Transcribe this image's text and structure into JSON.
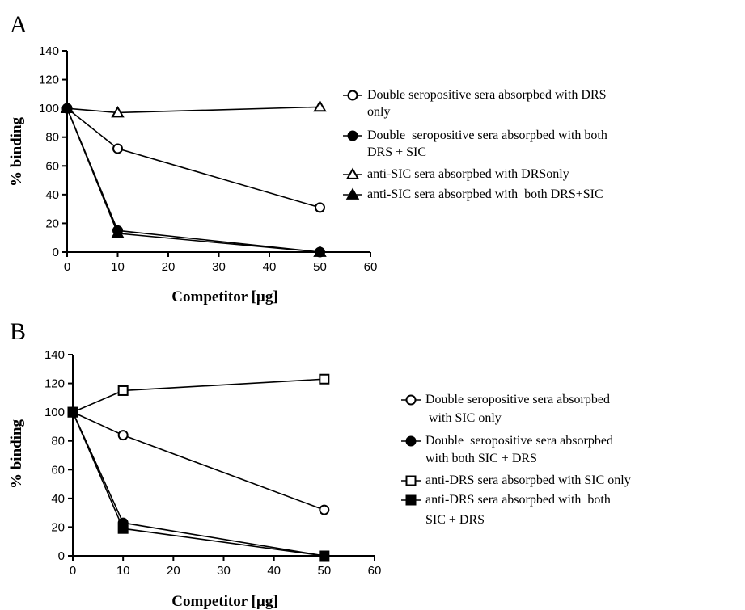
{
  "chart_data": [
    {
      "panel": "A",
      "type": "line",
      "xlabel": "Competitor [µg]",
      "ylabel": "% binding",
      "xlim": [
        0,
        60
      ],
      "ylim": [
        0,
        140
      ],
      "xticks": [
        0,
        10,
        20,
        30,
        40,
        50,
        60
      ],
      "yticks": [
        0,
        20,
        40,
        60,
        80,
        100,
        120,
        140
      ],
      "grid": false,
      "legend_position": "right",
      "x": [
        0,
        10,
        50
      ],
      "series": [
        {
          "name_lines": [
            "Double seropositive sera absorpbed with DRS",
            "only"
          ],
          "marker": "circle-open",
          "values": [
            100,
            72,
            31
          ]
        },
        {
          "name_lines": [
            "Double  seropositive sera absorpbed with both",
            "DRS + SIC"
          ],
          "marker": "circle-filled",
          "values": [
            100,
            15,
            0
          ]
        },
        {
          "name_lines": [
            "anti-SIC sera absorpbed with DRSonly"
          ],
          "marker": "triangle-open",
          "values": [
            100,
            97,
            101
          ]
        },
        {
          "name_lines": [
            "anti-SIC sera absorpbed with  both DRS+SIC"
          ],
          "marker": "triangle-filled",
          "values": [
            100,
            13,
            0
          ]
        }
      ]
    },
    {
      "panel": "B",
      "type": "line",
      "xlabel": "Competitor [µg]",
      "ylabel": "% binding",
      "xlim": [
        0,
        60
      ],
      "ylim": [
        0,
        140
      ],
      "xticks": [
        0,
        10,
        20,
        30,
        40,
        50,
        60
      ],
      "yticks": [
        0,
        20,
        40,
        60,
        80,
        100,
        120,
        140
      ],
      "grid": false,
      "legend_position": "right",
      "x": [
        0,
        10,
        50
      ],
      "series": [
        {
          "name_lines": [
            "Double seropositive sera absorpbed",
            " with SIC only"
          ],
          "marker": "circle-open",
          "values": [
            100,
            84,
            32
          ]
        },
        {
          "name_lines": [
            "Double  seropositive sera absorpbed",
            "with both SIC + DRS"
          ],
          "marker": "circle-filled",
          "values": [
            100,
            23,
            0
          ]
        },
        {
          "name_lines": [
            "anti-DRS sera absorpbed with SIC only"
          ],
          "marker": "square-open",
          "values": [
            100,
            115,
            123
          ]
        },
        {
          "name_lines": [
            "anti-DRS sera absorpbed with  both",
            "SIC + DRS"
          ],
          "marker": "square-filled",
          "values": [
            100,
            19,
            0
          ]
        }
      ]
    }
  ]
}
